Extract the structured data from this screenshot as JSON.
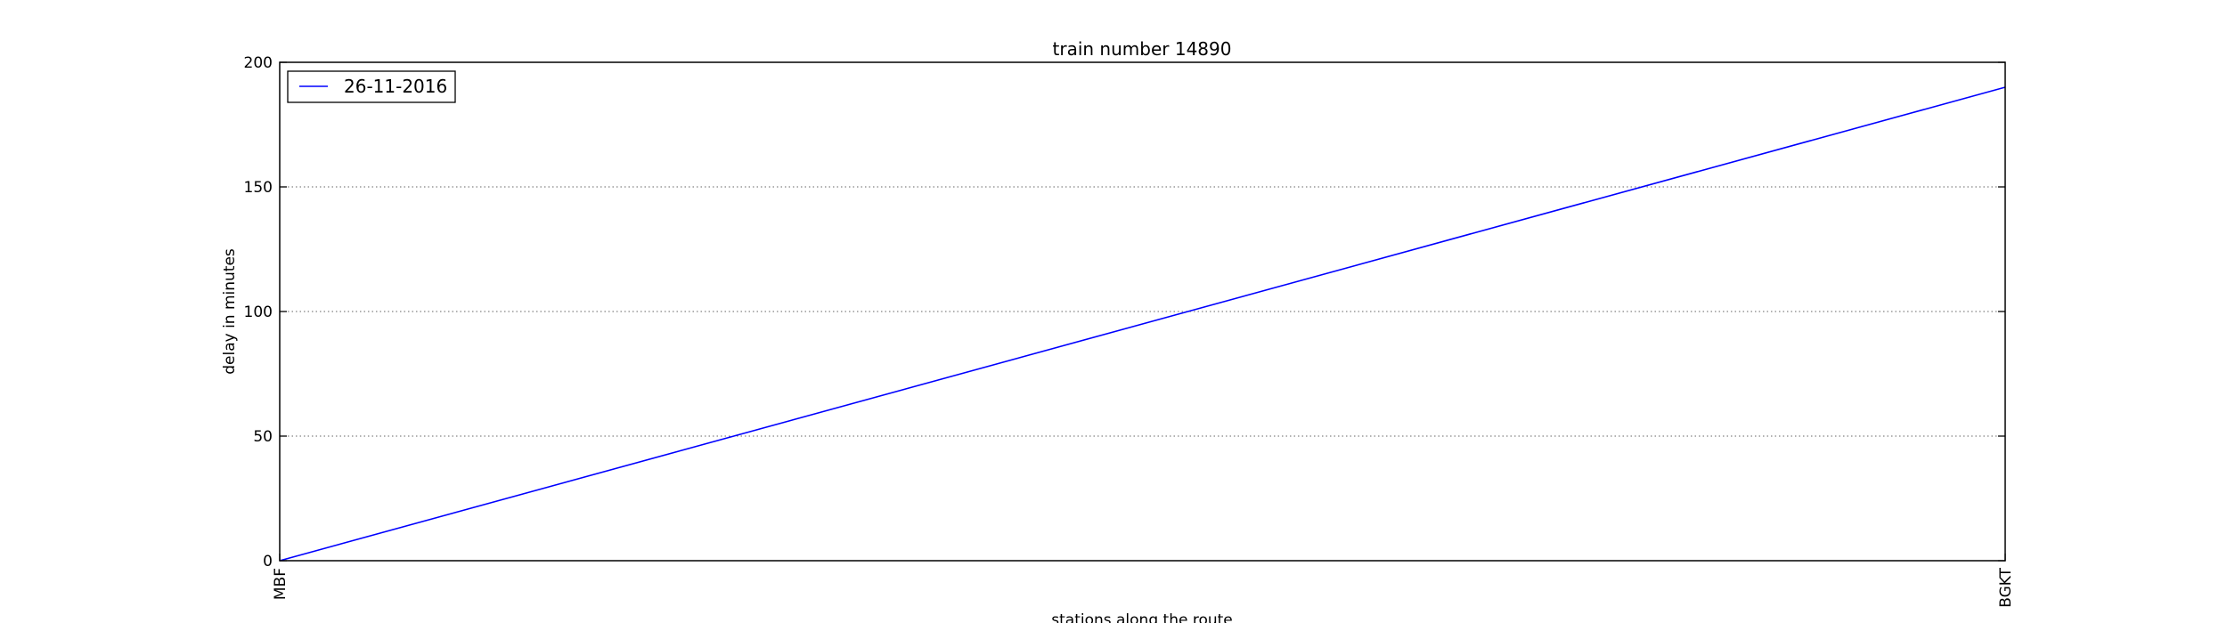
{
  "chart_data": {
    "type": "line",
    "title": "train number 14890",
    "xlabel": "stations along the route",
    "ylabel": "delay in minutes",
    "categories": [
      "MBF",
      "BGKT"
    ],
    "series": [
      {
        "name": "26-11-2016",
        "values": [
          0,
          190
        ],
        "color": "#0000ff"
      }
    ],
    "ylim": [
      0,
      200
    ],
    "yticks": [
      0,
      50,
      100,
      150,
      200
    ],
    "grid": "y-dotted",
    "legend_position": "upper-left"
  }
}
